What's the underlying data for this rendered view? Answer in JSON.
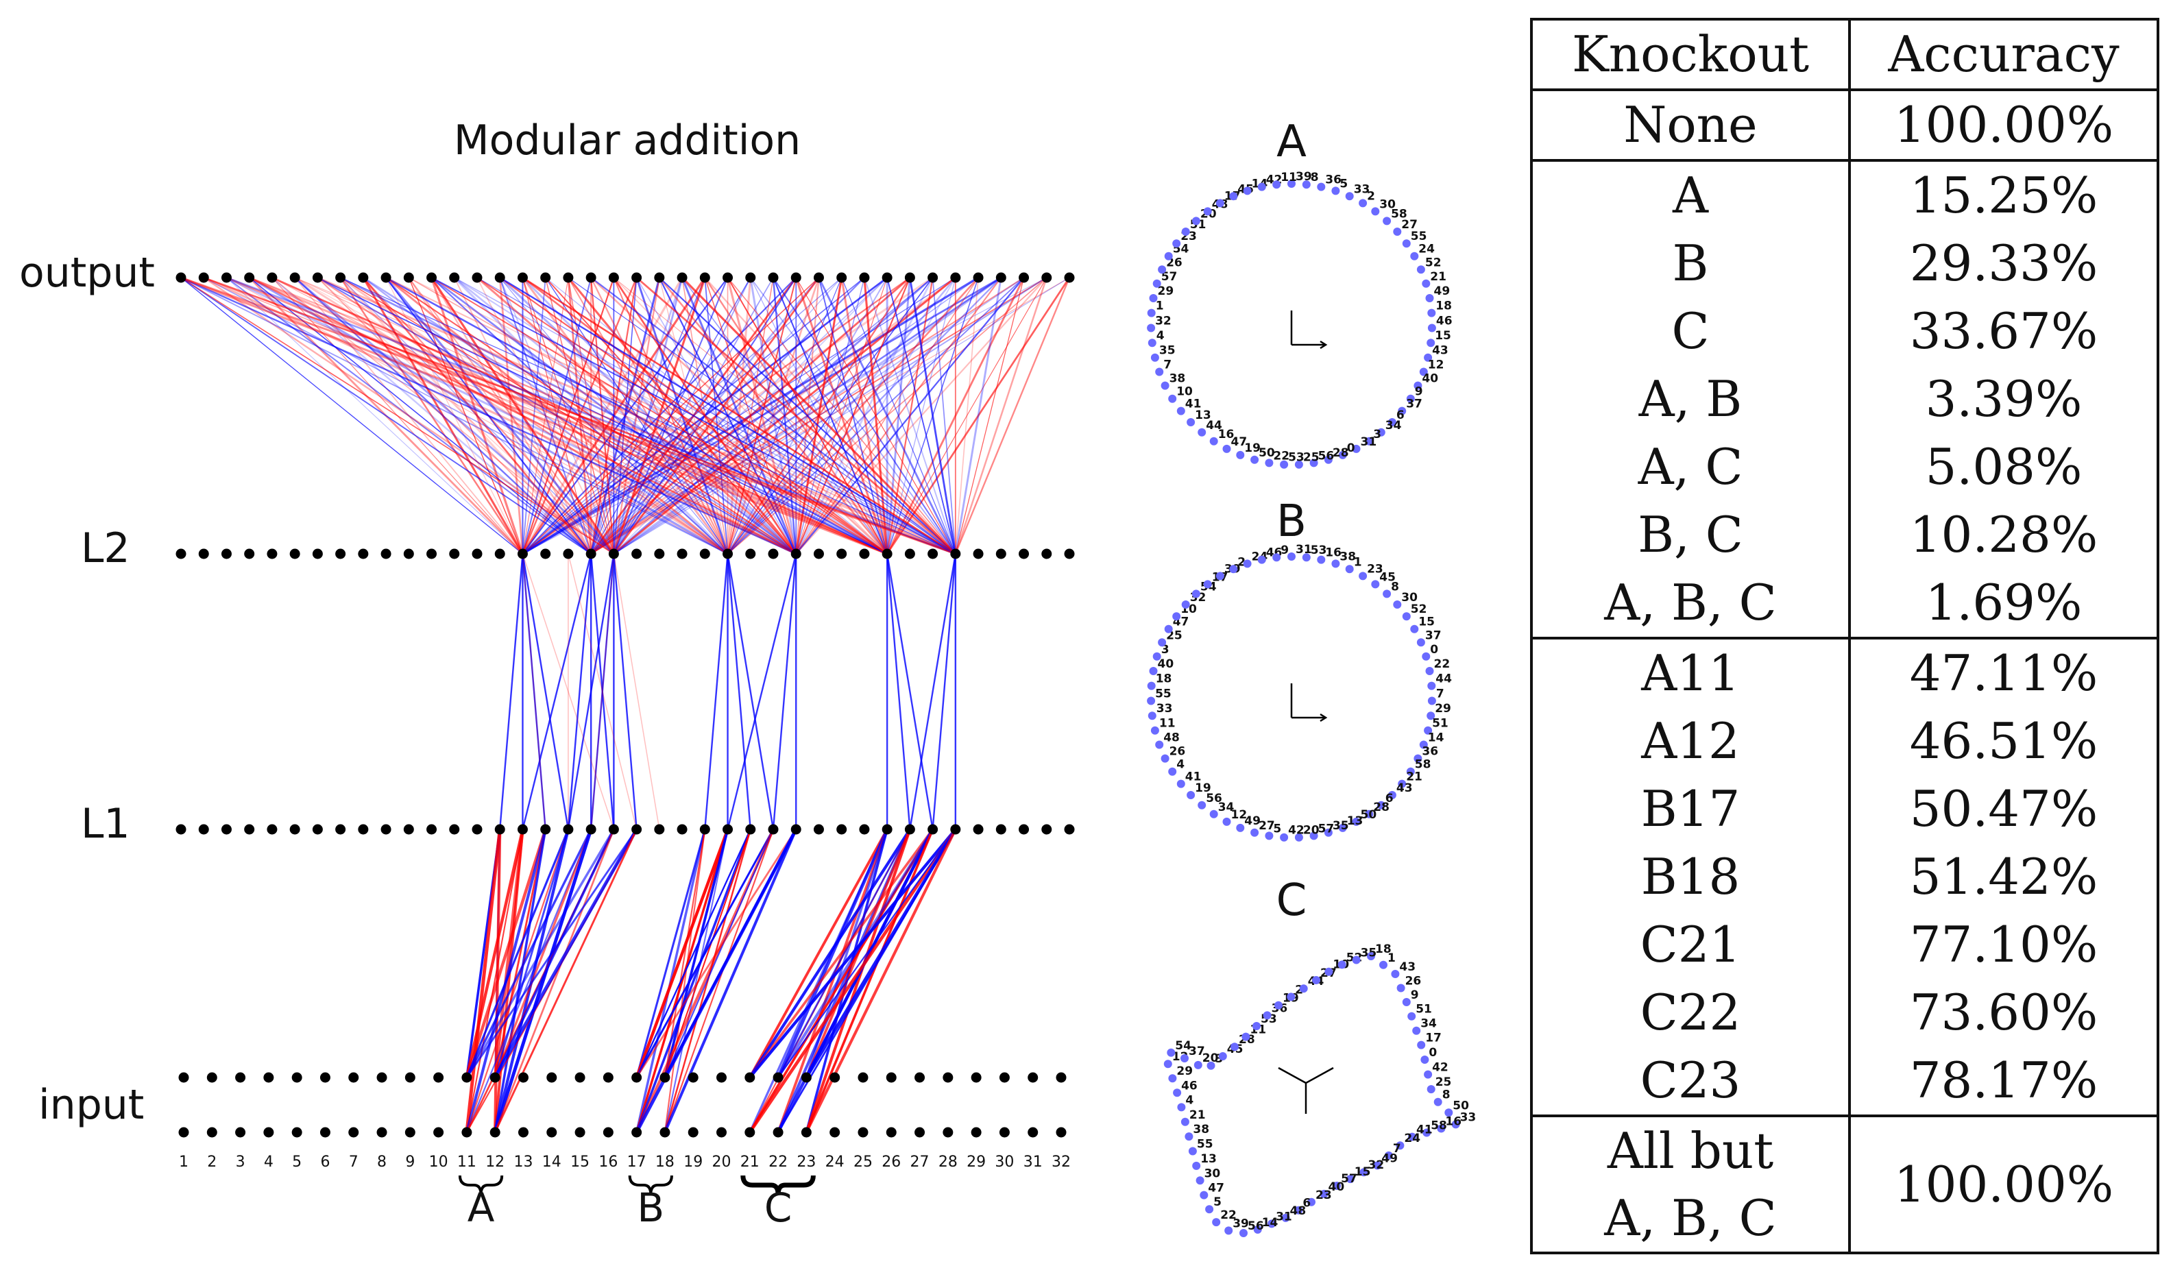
{
  "network": {
    "title": "Modular addition",
    "layer_labels": {
      "output": "output",
      "l2": "L2",
      "l1": "L1",
      "input": "input"
    },
    "input_indices": [
      "1",
      "2",
      "3",
      "4",
      "5",
      "6",
      "7",
      "8",
      "9",
      "10",
      "11",
      "12",
      "13",
      "14",
      "15",
      "16",
      "17",
      "18",
      "19",
      "20",
      "21",
      "22",
      "23",
      "24",
      "25",
      "26",
      "27",
      "28",
      "29",
      "30",
      "31",
      "32"
    ],
    "groups": [
      {
        "label": "A",
        "neurons": [
          11,
          12
        ]
      },
      {
        "label": "B",
        "neurons": [
          17,
          18
        ]
      },
      {
        "label": "C",
        "neurons": [
          21,
          22,
          23
        ]
      }
    ],
    "colors": {
      "positive": "#ff0000",
      "negative": "#0000ff",
      "node": "#000000"
    }
  },
  "embeddings": [
    {
      "label": "A",
      "shape": "circle",
      "numbers": [
        "39",
        "8",
        "36",
        "5",
        "33",
        "2",
        "30",
        "58",
        "27",
        "55",
        "24",
        "52",
        "21",
        "49",
        "18",
        "46",
        "15",
        "43",
        "12",
        "40",
        "9",
        "37",
        "6",
        "34",
        "3",
        "31",
        "0",
        "28",
        "56",
        "25",
        "53",
        "22",
        "50",
        "19",
        "47",
        "16",
        "44",
        "13",
        "41",
        "10",
        "38",
        "7",
        "35",
        "4",
        "32",
        "1",
        "29",
        "57",
        "26",
        "54",
        "23",
        "51",
        "20",
        "48",
        "17",
        "45",
        "14",
        "42",
        "11"
      ]
    },
    {
      "label": "B",
      "shape": "circle",
      "numbers": [
        "31",
        "53",
        "16",
        "38",
        "1",
        "23",
        "45",
        "8",
        "30",
        "52",
        "15",
        "37",
        "0",
        "22",
        "44",
        "7",
        "29",
        "51",
        "14",
        "36",
        "58",
        "21",
        "43",
        "6",
        "28",
        "50",
        "13",
        "35",
        "57",
        "20",
        "42",
        "5",
        "27",
        "49",
        "12",
        "34",
        "56",
        "19",
        "41",
        "4",
        "26",
        "48",
        "11",
        "33",
        "55",
        "18",
        "40",
        "3",
        "25",
        "47",
        "10",
        "32",
        "54",
        "17",
        "39",
        "2",
        "24",
        "46",
        "9"
      ]
    },
    {
      "label": "C",
      "shape": "irregular",
      "numbers": [
        "18",
        "1",
        "43",
        "26",
        "9",
        "51",
        "34",
        "17",
        "0",
        "42",
        "25",
        "8",
        "50",
        "33",
        "16",
        "58",
        "41",
        "24",
        "7",
        "49",
        "32",
        "15",
        "57",
        "40",
        "23",
        "6",
        "48",
        "31",
        "14",
        "56",
        "39",
        "22",
        "5",
        "47",
        "30",
        "13",
        "55",
        "38",
        "21",
        "4",
        "46",
        "29",
        "12",
        "54",
        "37",
        "20",
        "3",
        "45",
        "28",
        "11",
        "53",
        "36",
        "19",
        "2",
        "44",
        "27",
        "10",
        "52",
        "35"
      ]
    }
  ],
  "table": {
    "headers": [
      "Knockout",
      "Accuracy"
    ],
    "groups": [
      [
        {
          "knockout": "None",
          "accuracy": "100.00%"
        }
      ],
      [
        {
          "knockout": "A",
          "accuracy": "15.25%"
        },
        {
          "knockout": "B",
          "accuracy": "29.33%"
        },
        {
          "knockout": "C",
          "accuracy": "33.67%"
        },
        {
          "knockout": "A, B",
          "accuracy": "3.39%"
        },
        {
          "knockout": "A, C",
          "accuracy": "5.08%"
        },
        {
          "knockout": "B, C",
          "accuracy": "10.28%"
        },
        {
          "knockout": "A, B, C",
          "accuracy": "1.69%"
        }
      ],
      [
        {
          "knockout": "A11",
          "accuracy": "47.11%"
        },
        {
          "knockout": "A12",
          "accuracy": "46.51%"
        },
        {
          "knockout": "B17",
          "accuracy": "50.47%"
        },
        {
          "knockout": "B18",
          "accuracy": "51.42%"
        },
        {
          "knockout": "C21",
          "accuracy": "77.10%"
        },
        {
          "knockout": "C22",
          "accuracy": "73.60%"
        },
        {
          "knockout": "C23",
          "accuracy": "78.17%"
        }
      ]
    ],
    "final_row": {
      "knockout_line1": "All but",
      "knockout_line2": "A, B, C",
      "accuracy": "100.00%"
    }
  }
}
